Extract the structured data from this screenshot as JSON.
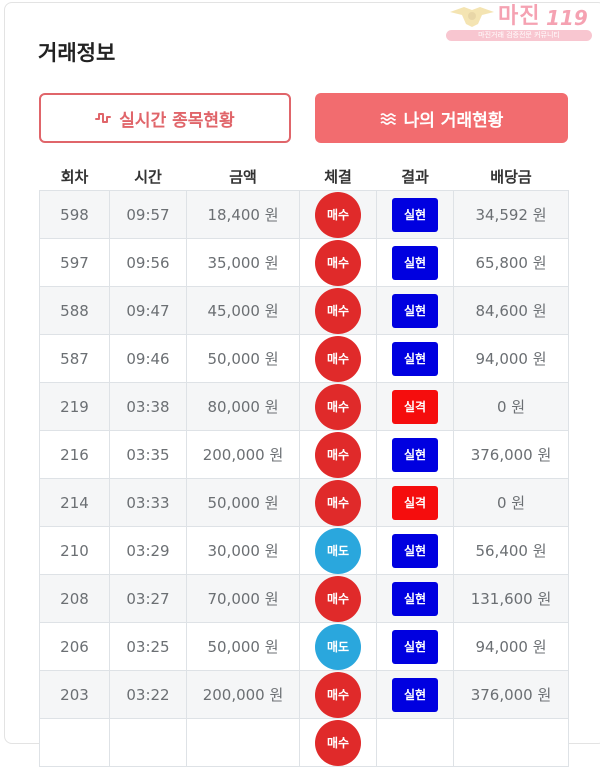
{
  "watermark": {
    "title": "마진",
    "number": "119",
    "subtitle": "마진거래 검증전문 커뮤니티"
  },
  "page": {
    "title": "거래정보"
  },
  "tabs": [
    {
      "label": "실시간 종목현황",
      "icon": "pulse-icon",
      "active": false
    },
    {
      "label": "나의 거래현황",
      "icon": "wave-icon",
      "active": true
    }
  ],
  "colors": {
    "accent": "#f26c6f",
    "buy": "#e02a2a",
    "sell": "#2aa7dd",
    "win": "#0000e0",
    "lose": "#f50d0d"
  },
  "table": {
    "headers": [
      "회차",
      "시간",
      "금액",
      "체결",
      "결과",
      "배당금"
    ],
    "rows": [
      {
        "round": "598",
        "time": "09:57",
        "amount": "18,400 원",
        "side": "매수",
        "result": "실현",
        "payout": "34,592 원"
      },
      {
        "round": "597",
        "time": "09:56",
        "amount": "35,000 원",
        "side": "매수",
        "result": "실현",
        "payout": "65,800 원"
      },
      {
        "round": "588",
        "time": "09:47",
        "amount": "45,000 원",
        "side": "매수",
        "result": "실현",
        "payout": "84,600 원"
      },
      {
        "round": "587",
        "time": "09:46",
        "amount": "50,000 원",
        "side": "매수",
        "result": "실현",
        "payout": "94,000 원"
      },
      {
        "round": "219",
        "time": "03:38",
        "amount": "80,000 원",
        "side": "매수",
        "result": "실격",
        "payout": "0 원"
      },
      {
        "round": "216",
        "time": "03:35",
        "amount": "200,000 원",
        "side": "매수",
        "result": "실현",
        "payout": "376,000 원"
      },
      {
        "round": "214",
        "time": "03:33",
        "amount": "50,000 원",
        "side": "매수",
        "result": "실격",
        "payout": "0 원"
      },
      {
        "round": "210",
        "time": "03:29",
        "amount": "30,000 원",
        "side": "매도",
        "result": "실현",
        "payout": "56,400 원"
      },
      {
        "round": "208",
        "time": "03:27",
        "amount": "70,000 원",
        "side": "매수",
        "result": "실현",
        "payout": "131,600 원"
      },
      {
        "round": "206",
        "time": "03:25",
        "amount": "50,000 원",
        "side": "매도",
        "result": "실현",
        "payout": "94,000 원"
      },
      {
        "round": "203",
        "time": "03:22",
        "amount": "200,000 원",
        "side": "매수",
        "result": "실현",
        "payout": "376,000 원"
      },
      {
        "round": "",
        "time": "",
        "amount": "",
        "side": "매수",
        "result": "",
        "payout": ""
      }
    ]
  }
}
